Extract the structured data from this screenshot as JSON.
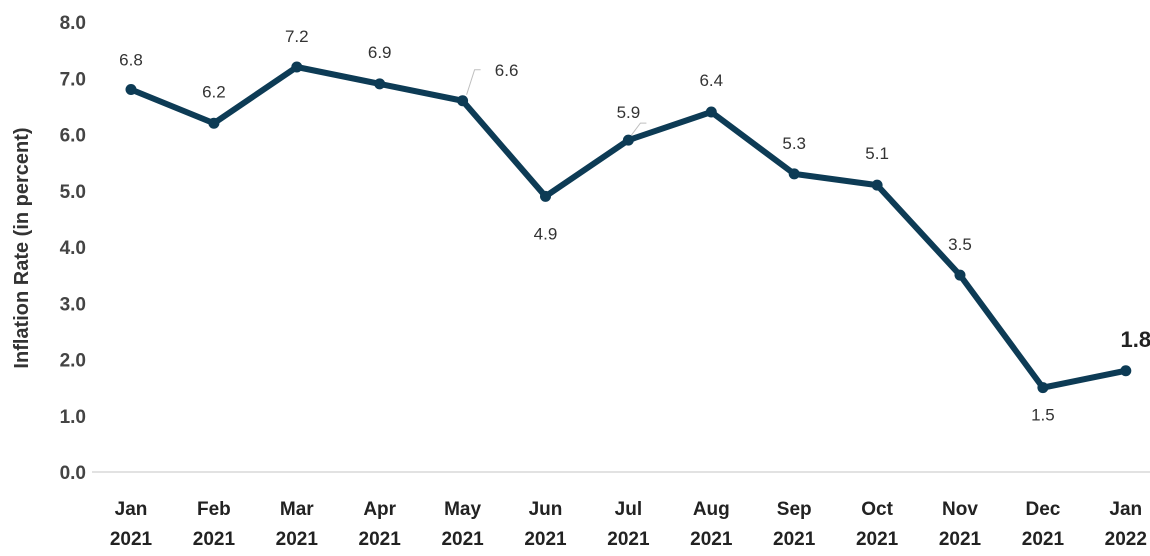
{
  "chart_data": {
    "type": "line",
    "title": "",
    "xlabel": "",
    "ylabel": "Inflation Rate (in percent)",
    "ylim": [
      0,
      8
    ],
    "yticks": [
      "0.0",
      "1.0",
      "2.0",
      "3.0",
      "4.0",
      "5.0",
      "6.0",
      "7.0",
      "8.0"
    ],
    "grid": false,
    "legend": "none",
    "categories": [
      [
        "Jan",
        "2021"
      ],
      [
        "Feb",
        "2021"
      ],
      [
        "Mar",
        "2021"
      ],
      [
        "Apr",
        "2021"
      ],
      [
        "May",
        "2021"
      ],
      [
        "Jun",
        "2021"
      ],
      [
        "Jul",
        "2021"
      ],
      [
        "Aug",
        "2021"
      ],
      [
        "Sep",
        "2021"
      ],
      [
        "Oct",
        "2021"
      ],
      [
        "Nov",
        "2021"
      ],
      [
        "Dec",
        "2021"
      ],
      [
        "Jan",
        "2022"
      ]
    ],
    "series": [
      {
        "values": [
          6.8,
          6.2,
          7.2,
          6.9,
          6.6,
          4.9,
          5.9,
          6.4,
          5.3,
          5.1,
          3.5,
          1.5,
          1.8
        ],
        "labels": [
          "6.8",
          "6.2",
          "7.2",
          "6.9",
          "6.6",
          "4.9",
          "5.9",
          "6.4",
          "5.3",
          "5.1",
          "3.5",
          "1.5",
          "1.8"
        ],
        "color": "#0d3b55"
      }
    ],
    "emphasized_label_index": 12
  }
}
